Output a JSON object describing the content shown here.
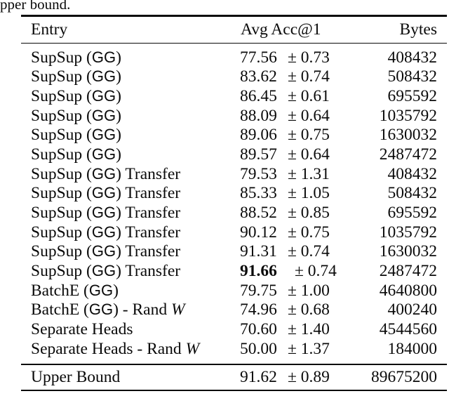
{
  "caption_fragment": "pper bound.",
  "table": {
    "headers": {
      "entry": "Entry",
      "acc": "Avg Acc@1",
      "bytes": "Bytes"
    },
    "rows": [
      {
        "entry": "SupSup (GG)",
        "value": "77.56",
        "err": "± 0.73",
        "bytes": "408432",
        "bold": false
      },
      {
        "entry": "SupSup (GG)",
        "value": "83.62",
        "err": "± 0.74",
        "bytes": "508432",
        "bold": false
      },
      {
        "entry": "SupSup (GG)",
        "value": "86.45",
        "err": "± 0.61",
        "bytes": "695592",
        "bold": false
      },
      {
        "entry": "SupSup (GG)",
        "value": "88.09",
        "err": "± 0.64",
        "bytes": "1035792",
        "bold": false
      },
      {
        "entry": "SupSup (GG)",
        "value": "89.06",
        "err": "± 0.75",
        "bytes": "1630032",
        "bold": false
      },
      {
        "entry": "SupSup (GG)",
        "value": "89.57",
        "err": "± 0.64",
        "bytes": "2487472",
        "bold": false
      },
      {
        "entry": "SupSup (GG) Transfer",
        "value": "79.53",
        "err": "± 1.31",
        "bytes": "408432",
        "bold": false
      },
      {
        "entry": "SupSup (GG) Transfer",
        "value": "85.33",
        "err": "± 1.05",
        "bytes": "508432",
        "bold": false
      },
      {
        "entry": "SupSup (GG) Transfer",
        "value": "88.52",
        "err": "± 0.85",
        "bytes": "695592",
        "bold": false
      },
      {
        "entry": "SupSup (GG) Transfer",
        "value": "90.12",
        "err": "± 0.75",
        "bytes": "1035792",
        "bold": false
      },
      {
        "entry": "SupSup (GG) Transfer",
        "value": "91.31",
        "err": "± 0.74",
        "bytes": "1630032",
        "bold": false
      },
      {
        "entry": "SupSup (GG) Transfer",
        "value": "91.66",
        "err": "± 0.74",
        "bytes": "2487472",
        "bold": true
      },
      {
        "entry": "BatchE (GG)",
        "value": "79.75",
        "err": "± 1.00",
        "bytes": "4640800",
        "bold": false
      },
      {
        "entry": "BatchE (GG) - Rand W",
        "value": "74.96",
        "err": "± 0.68",
        "bytes": "400240",
        "bold": false
      },
      {
        "entry": "Separate Heads",
        "value": "70.60",
        "err": "± 1.40",
        "bytes": "4544560",
        "bold": false
      },
      {
        "entry": "Separate Heads - Rand W",
        "value": "50.00",
        "err": "± 1.37",
        "bytes": "184000",
        "bold": false
      }
    ],
    "footer": {
      "entry": "Upper Bound",
      "value": "91.62",
      "err": "± 0.89",
      "bytes": "89675200"
    }
  }
}
